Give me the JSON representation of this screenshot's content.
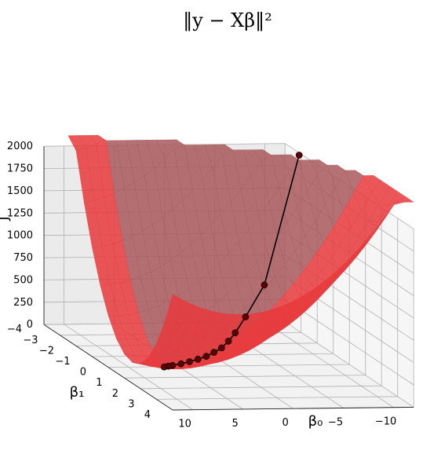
{
  "chart_data": {
    "type": "surface3d",
    "title": "‖y − Xβ‖²",
    "xlabel": "β₀",
    "ylabel": "β₁",
    "zlabel": "J",
    "xlim": [
      -12,
      12
    ],
    "ylim": [
      -4,
      4
    ],
    "zlim": [
      0,
      2000
    ],
    "x_ticks": [
      "−10",
      "−5",
      "0",
      "5",
      "10"
    ],
    "y_ticks": [
      "−4",
      "−3",
      "−2",
      "−1",
      "0",
      "1",
      "2",
      "3",
      "4"
    ],
    "z_ticks": [
      "0",
      "250",
      "500",
      "750",
      "1000",
      "1250",
      "1500",
      "1750",
      "2000"
    ],
    "grid": true,
    "surface_colors": [
      "#a8585a",
      "#e8393c"
    ],
    "path_color": "#5a0000",
    "descent_path": [
      {
        "b0": -11,
        "b1": -2.5,
        "J": 2050
      },
      {
        "b0": -4.5,
        "b1": -0.6,
        "J": 830
      },
      {
        "b0": -1.5,
        "b1": 0.1,
        "J": 560
      },
      {
        "b0": 0.0,
        "b1": 0.4,
        "J": 420
      },
      {
        "b0": 1.0,
        "b1": 0.6,
        "J": 350
      },
      {
        "b0": 2.0,
        "b1": 0.8,
        "J": 300
      },
      {
        "b0": 3.0,
        "b1": 0.95,
        "J": 270
      },
      {
        "b0": 4.0,
        "b1": 1.1,
        "J": 245
      },
      {
        "b0": 5.0,
        "b1": 1.2,
        "J": 225
      },
      {
        "b0": 6.0,
        "b1": 1.3,
        "J": 210
      },
      {
        "b0": 7.0,
        "b1": 1.4,
        "J": 200
      },
      {
        "b0": 8.0,
        "b1": 1.5,
        "J": 195
      },
      {
        "b0": 8.5,
        "b1": 1.55,
        "J": 193
      },
      {
        "b0": 9.0,
        "b1": 1.6,
        "J": 192
      }
    ]
  }
}
